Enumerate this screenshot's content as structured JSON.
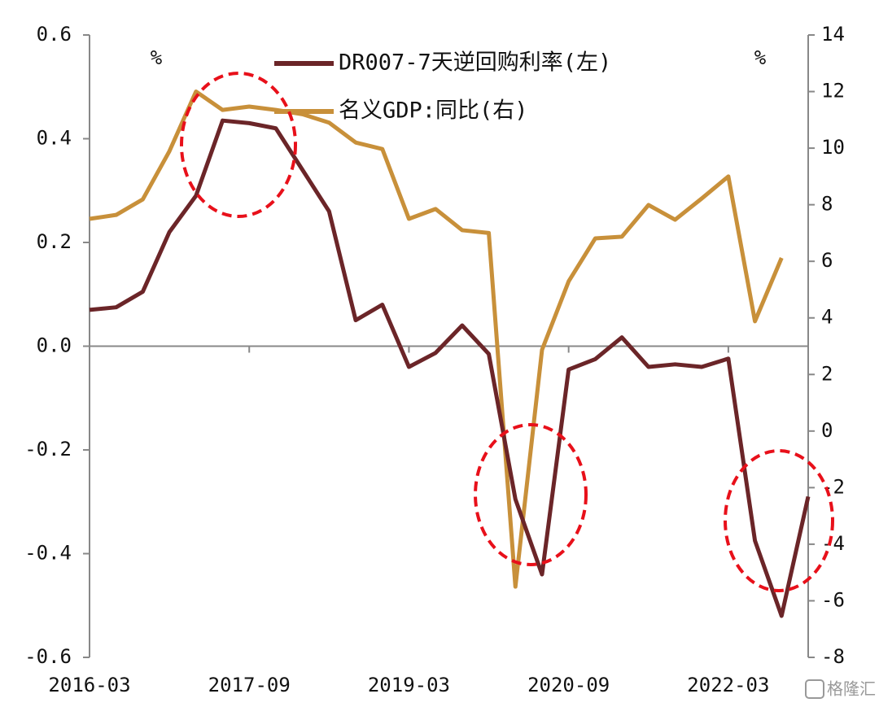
{
  "chart_data": {
    "type": "line",
    "ylabel": "%",
    "y2label": "%",
    "watermark": "格隆汇",
    "legend": "upper center",
    "categories": [
      "2016-03",
      null,
      null,
      null,
      null,
      null,
      "2017-09",
      null,
      null,
      null,
      null,
      null,
      "2019-03",
      null,
      null,
      null,
      null,
      null,
      "2020-09",
      null,
      null,
      null,
      null,
      null,
      "2022-03",
      null,
      null,
      null
    ],
    "series": [
      {
        "name": "DR007-7天逆回购利率(左)",
        "color": "#6b2528",
        "axis": "y",
        "values": [
          0.07,
          0.075,
          0.105,
          0.22,
          0.29,
          0.435,
          0.43,
          0.42,
          0.34,
          0.26,
          0.05,
          0.08,
          -0.04,
          -0.013,
          0.04,
          -0.015,
          -0.295,
          -0.44,
          -0.045,
          -0.025,
          0.017,
          -0.04,
          -0.035,
          -0.04,
          -0.024,
          -0.375,
          -0.52,
          -0.29
        ]
      },
      {
        "name": "名义GDP:同比(右)",
        "color": "#c8903a",
        "axis": "y2",
        "values": [
          7.5,
          7.64,
          8.19,
          9.89,
          12.0,
          11.35,
          11.47,
          11.35,
          11.2,
          10.9,
          10.2,
          9.97,
          7.5,
          7.85,
          7.1,
          7.0,
          -5.5,
          2.87,
          5.29,
          6.81,
          6.87,
          7.99,
          7.47,
          8.22,
          9.0,
          3.88,
          6.12,
          null
        ]
      }
    ],
    "ylim": [
      -0.6,
      0.6
    ],
    "yticks": [
      0.6,
      0.4,
      0.2,
      {
        "value": 0,
        "label": "0.0"
      },
      -0.2,
      -0.4,
      -0.6
    ],
    "y2lim": [
      -8,
      14
    ],
    "y2ticks": [
      14,
      12,
      10,
      8,
      6,
      4,
      2,
      0,
      -2,
      -4,
      -6,
      -8
    ]
  }
}
